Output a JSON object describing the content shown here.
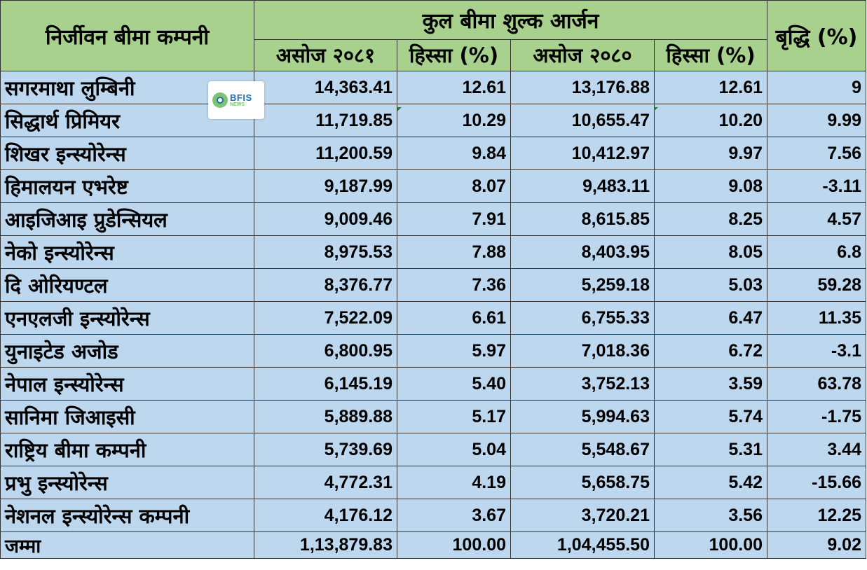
{
  "chart_data": {
    "type": "table",
    "header": {
      "company": "निर्जीवन बीमा कम्पनी",
      "group": "कुल बीमा शुल्क आर्जन",
      "col_2081": "असोज २०८१",
      "col_share_2081": "हिस्सा (%)",
      "col_2080": "असोज २०८०",
      "col_share_2080": "हिस्सा (%)",
      "growth": "बृद्धि (%)"
    },
    "rows": [
      {
        "name": "सगरमाथा लुम्बिनी",
        "v2081": "14,363.41",
        "s2081": "12.61",
        "v2080": "13,176.88",
        "s2080": "12.61",
        "growth": "9"
      },
      {
        "name": "सिद्धार्थ प्रिमियर",
        "v2081": "11,719.85",
        "s2081": "10.29",
        "v2080": "10,655.47",
        "s2080": "10.20",
        "growth": "9.99"
      },
      {
        "name": "शिखर इन्स्योरेन्स",
        "v2081": "11,200.59",
        "s2081": "9.84",
        "v2080": "10,412.97",
        "s2080": "9.97",
        "growth": "7.56"
      },
      {
        "name": "हिमालयन एभरेष्ट",
        "v2081": "9,187.99",
        "s2081": "8.07",
        "v2080": "9,483.11",
        "s2080": "9.08",
        "growth": "-3.11"
      },
      {
        "name": "आइजिआइ प्रुडेन्सियल",
        "v2081": "9,009.46",
        "s2081": "7.91",
        "v2080": "8,615.85",
        "s2080": "8.25",
        "growth": "4.57"
      },
      {
        "name": "नेको इन्स्योरेन्स",
        "v2081": "8,975.53",
        "s2081": "7.88",
        "v2080": "8,403.95",
        "s2080": "8.05",
        "growth": "6.8"
      },
      {
        "name": "दि ओरियण्टल",
        "v2081": "8,376.77",
        "s2081": "7.36",
        "v2080": "5,259.18",
        "s2080": "5.03",
        "growth": "59.28"
      },
      {
        "name": "एनएलजी इन्स्योरेन्स",
        "v2081": "7,522.09",
        "s2081": "6.61",
        "v2080": "6,755.33",
        "s2080": "6.47",
        "growth": "11.35"
      },
      {
        "name": "युनाइटेड अजोड",
        "v2081": "6,800.95",
        "s2081": "5.97",
        "v2080": "7,018.36",
        "s2080": "6.72",
        "growth": "-3.1"
      },
      {
        "name": "नेपाल इन्स्योरेन्स",
        "v2081": "6,145.19",
        "s2081": "5.40",
        "v2080": "3,752.13",
        "s2080": "3.59",
        "growth": "63.78"
      },
      {
        "name": "सानिमा जिआइसी",
        "v2081": "5,889.88",
        "s2081": "5.17",
        "v2080": "5,994.63",
        "s2080": "5.74",
        "growth": "-1.75"
      },
      {
        "name": "राष्ट्रिय बीमा कम्पनी",
        "v2081": "5,739.69",
        "s2081": "5.04",
        "v2080": "5,548.67",
        "s2080": "5.31",
        "growth": "3.44"
      },
      {
        "name": "प्रभु इन्स्योरेन्स",
        "v2081": "4,772.31",
        "s2081": "4.19",
        "v2080": "5,658.75",
        "s2080": "5.42",
        "growth": "-15.66"
      },
      {
        "name": "नेशनल इन्स्योरेन्स कम्पनी",
        "v2081": "4,176.12",
        "s2081": "3.67",
        "v2080": "3,720.21",
        "s2080": "3.56",
        "growth": "12.25"
      }
    ],
    "total": {
      "name": "जम्मा",
      "v2081": "1,13,879.83",
      "s2081": "100.00",
      "v2080": "1,04,455.50",
      "s2080": "100.00",
      "growth": "9.02"
    }
  },
  "logo": {
    "line1": "BFIS",
    "line2": "NEWS"
  },
  "colors": {
    "header_bg": "#a9d18e",
    "body_bg": "#bdd7ee",
    "border": "#333333"
  }
}
